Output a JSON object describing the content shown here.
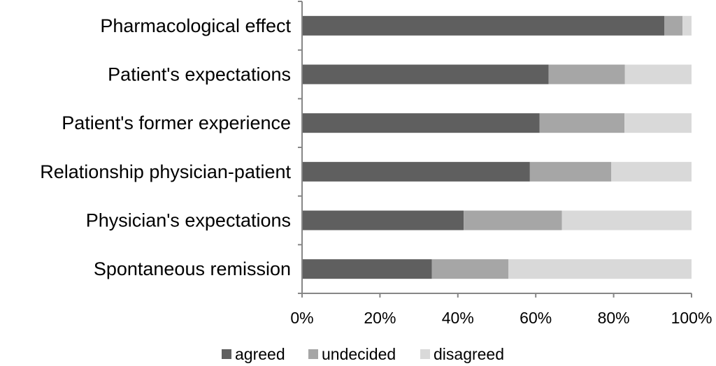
{
  "colors": {
    "agreed": "#5f5f5f",
    "undecided": "#a6a6a6",
    "disagreed": "#d9d9d9",
    "axis": "#868686"
  },
  "chart_data": {
    "type": "bar",
    "orientation": "horizontal",
    "stacked": true,
    "percent_stacked": true,
    "categories": [
      "Pharmacological effect",
      "Patient's expectations",
      "Patient's former experience",
      "Relationship physician-patient",
      "Physician's expectations",
      "Spontaneous remission"
    ],
    "series": [
      {
        "name": "agreed",
        "values": [
          93,
          63.3,
          61,
          58.5,
          41.5,
          33.3
        ]
      },
      {
        "name": "undecided",
        "values": [
          4.7,
          19.6,
          21.8,
          20.9,
          25.2,
          19.7
        ]
      },
      {
        "name": "disagreed",
        "values": [
          2.3,
          17.1,
          17.2,
          20.6,
          33.3,
          47
        ]
      }
    ],
    "x_ticks": [
      "0%",
      "20%",
      "40%",
      "60%",
      "80%",
      "100%"
    ],
    "xlim": [
      0,
      100
    ],
    "grid": false,
    "legend_position": "bottom"
  }
}
